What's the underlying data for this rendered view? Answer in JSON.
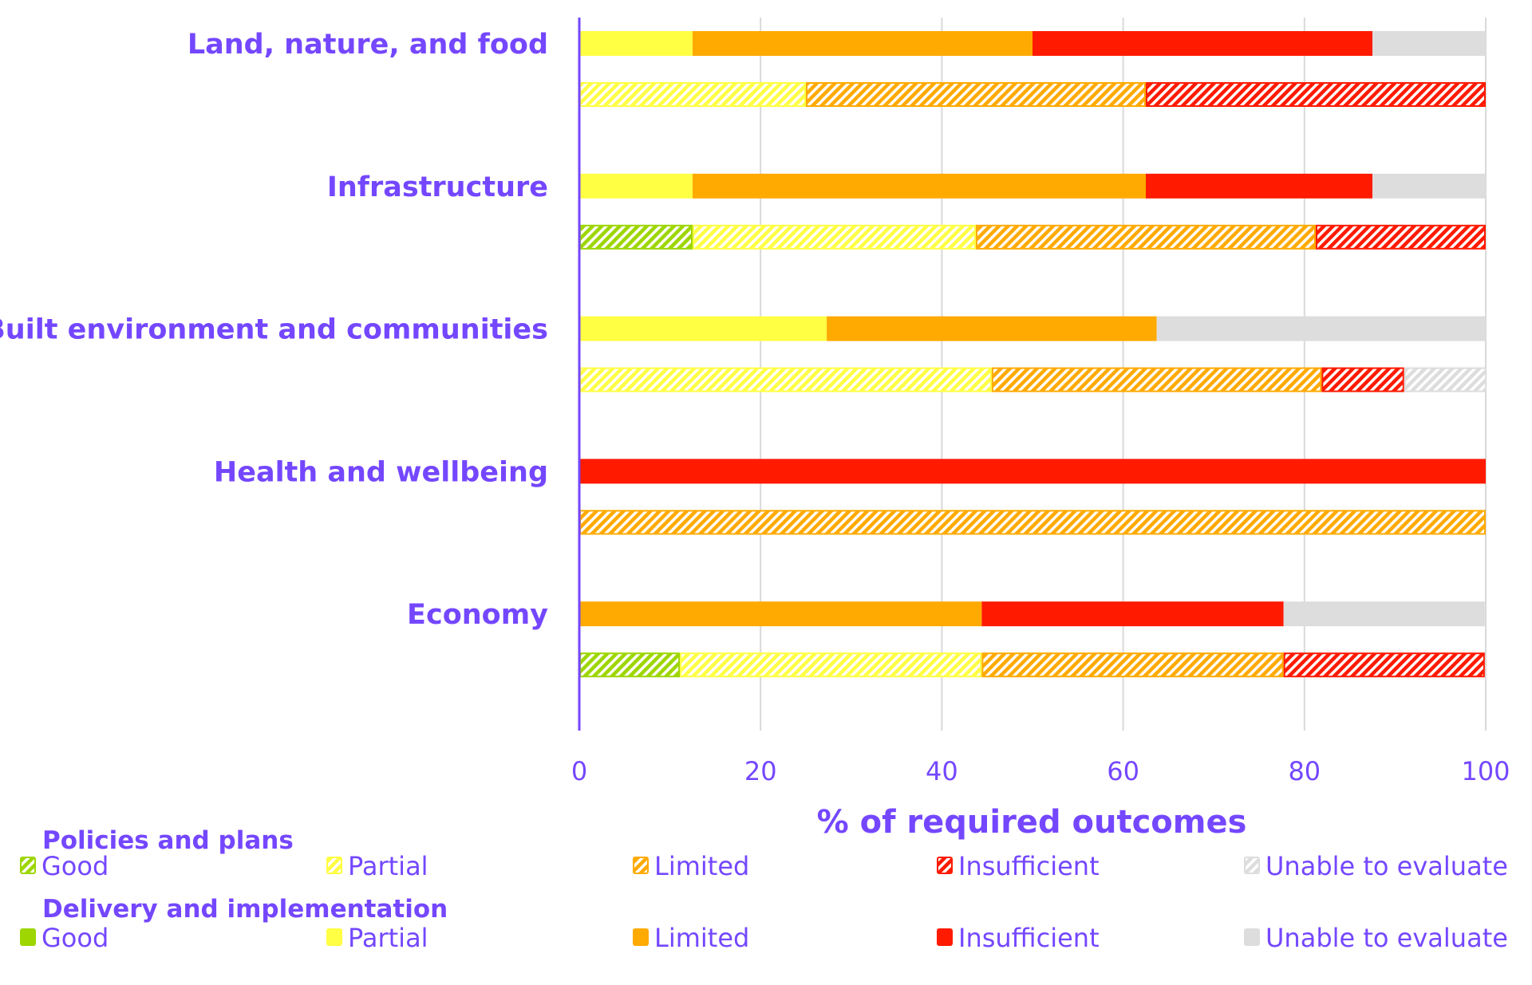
{
  "chart_data": {
    "type": "bar",
    "orientation": "horizontal",
    "stacked": true,
    "xlabel": "% of required outcomes",
    "xlim": [
      0,
      100
    ],
    "xticks": [
      0,
      20,
      40,
      60,
      80,
      100
    ],
    "grid": true,
    "legend_placement": "bottom",
    "categories": [
      "Land, nature, and food",
      "Infrastructure",
      "Built environment and communities",
      "Health and wellbeing",
      "Economy"
    ],
    "ratings": [
      "Good",
      "Partial",
      "Limited",
      "Insufficient",
      "Unable to evaluate"
    ],
    "colors": {
      "Good": "#9dd600",
      "Partial": "#ffff44",
      "Limited": "#ffaa00",
      "Insufficient": "#ff1a00",
      "Unable to evaluate": "#dddddd"
    },
    "series_groups": [
      {
        "name": "Delivery and implementation",
        "style": "solid",
        "values": [
          [
            0,
            12.5,
            37.5,
            37.5,
            12.5
          ],
          [
            0,
            12.5,
            50,
            25,
            12.5
          ],
          [
            0,
            27.3,
            36.4,
            0,
            36.4
          ],
          [
            0,
            0,
            0,
            100,
            0
          ],
          [
            0,
            0,
            44.4,
            33.3,
            22.2
          ]
        ]
      },
      {
        "name": "Policies and plans",
        "style": "hatched",
        "values": [
          [
            0,
            25,
            37.5,
            37.5,
            0
          ],
          [
            12.5,
            31.25,
            37.5,
            18.75,
            0
          ],
          [
            0,
            45.5,
            36.4,
            9.1,
            9.1
          ],
          [
            0,
            0,
            100,
            0,
            0
          ],
          [
            11.1,
            33.3,
            33.3,
            22.2,
            0
          ]
        ]
      }
    ]
  },
  "legend": {
    "policies_title": "Policies and plans",
    "delivery_title": "Delivery and implementation"
  }
}
